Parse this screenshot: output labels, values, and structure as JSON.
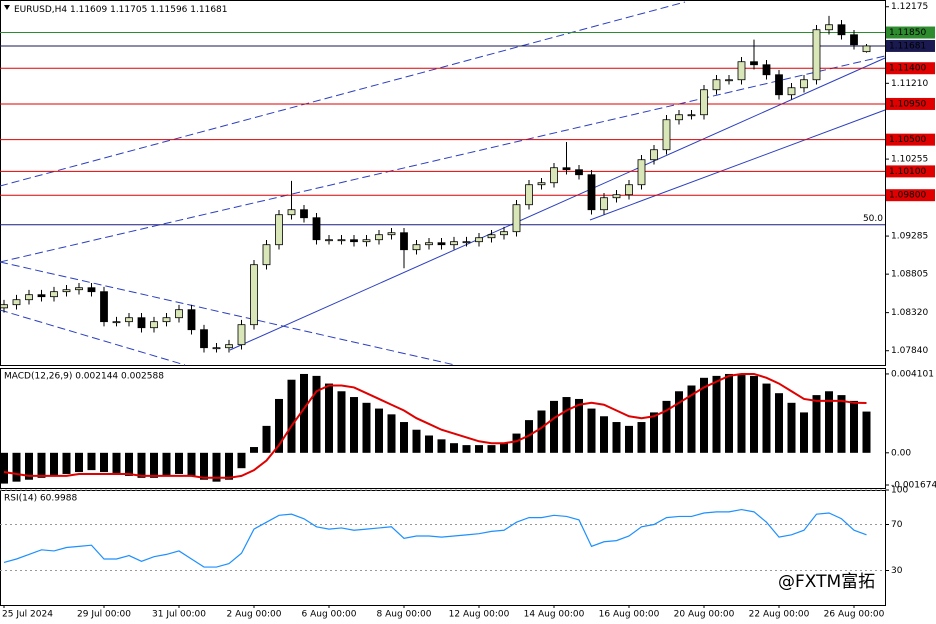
{
  "chart_data": [
    {
      "type": "candlestick",
      "title": "EURUSD,H4",
      "header_values": [
        "1.11609",
        "1.11705",
        "1.11596",
        "1.11681"
      ],
      "categories": [
        "25 Jul 2024",
        null,
        null,
        null,
        null,
        null,
        null,
        null,
        "29 Jul 00:00",
        null,
        null,
        null,
        null,
        null,
        "31 Jul 00:00",
        null,
        null,
        null,
        null,
        null,
        "2 Aug 00:00",
        null,
        null,
        null,
        null,
        null,
        "6 Aug 00:00",
        null,
        null,
        null,
        null,
        null,
        "8 Aug 00:00",
        null,
        null,
        null,
        null,
        null,
        "12 Aug 00:00",
        null,
        null,
        null,
        null,
        null,
        "14 Aug 00:00",
        null,
        null,
        null,
        null,
        null,
        "16 Aug 00:00",
        null,
        null,
        null,
        null,
        null,
        "20 Aug 00:00",
        null,
        null,
        null,
        null,
        null,
        "22 Aug 00:00",
        null,
        null,
        null,
        null,
        null,
        "26 Aug 00:00",
        null
      ],
      "open": [
        1.0838,
        1.0842,
        1.08483,
        1.08546,
        1.08521,
        1.08584,
        1.08609,
        1.08634,
        1.08584,
        1.08206,
        1.08206,
        1.08256,
        1.0813,
        1.08206,
        1.08256,
        1.08357,
        1.08105,
        1.07878,
        1.07878,
        1.07916,
        1.08168,
        1.08924,
        1.09176,
        1.09554,
        1.09617,
        1.09516,
        1.09239,
        1.09239,
        1.09239,
        1.09214,
        1.09239,
        1.09302,
        1.09327,
        1.09113,
        1.09176,
        1.09201,
        1.09176,
        1.09214,
        1.09214,
        1.09264,
        1.09302,
        1.0934,
        1.0968,
        1.09932,
        1.09957,
        1.10146,
        1.10121,
        1.10058,
        1.09617,
        1.09768,
        1.09806,
        1.09932,
        1.10247,
        1.10373,
        1.10751,
        1.10814,
        1.10814,
        1.11129,
        1.11255,
        1.11255,
        1.11482,
        1.11444,
        1.11318,
        1.11066,
        1.11154,
        1.11255,
        1.11885,
        1.11948,
        1.11822,
        1.11609
      ],
      "high": [
        1.0848,
        1.08543,
        1.08606,
        1.08606,
        1.08644,
        1.08669,
        1.08694,
        1.08694,
        1.08644,
        1.08266,
        1.08316,
        1.08316,
        1.08266,
        1.08316,
        1.08417,
        1.08417,
        1.08165,
        1.07938,
        1.07976,
        1.08228,
        1.08984,
        1.09236,
        1.09614,
        1.0998,
        1.09677,
        1.09576,
        1.09299,
        1.09299,
        1.09299,
        1.09299,
        1.09362,
        1.09387,
        1.09387,
        1.09236,
        1.09261,
        1.09261,
        1.09274,
        1.09274,
        1.09324,
        1.09362,
        1.094,
        1.0974,
        1.09992,
        1.10017,
        1.10206,
        1.1047,
        1.10181,
        1.10118,
        1.09828,
        1.09866,
        1.09992,
        1.10307,
        1.10433,
        1.10811,
        1.10874,
        1.10874,
        1.11189,
        1.11315,
        1.11315,
        1.11542,
        1.1176,
        1.11504,
        1.11378,
        1.11214,
        1.11315,
        1.11945,
        1.1206,
        1.12008,
        1.11882,
        1.11705
      ],
      "low": [
        1.0832,
        1.0836,
        1.08423,
        1.08461,
        1.08461,
        1.08524,
        1.08549,
        1.08524,
        1.08146,
        1.08146,
        1.08146,
        1.0807,
        1.0807,
        1.08146,
        1.08196,
        1.08045,
        1.07818,
        1.07818,
        1.07818,
        1.07856,
        1.08108,
        1.08864,
        1.09116,
        1.09494,
        1.09456,
        1.09179,
        1.09179,
        1.09179,
        1.09154,
        1.09154,
        1.09179,
        1.09242,
        1.0888,
        1.09053,
        1.09116,
        1.09116,
        1.09116,
        1.09154,
        1.09154,
        1.09204,
        1.09242,
        1.0928,
        1.0962,
        1.09872,
        1.09897,
        1.10061,
        1.09998,
        1.09557,
        1.09557,
        1.09708,
        1.09746,
        1.09872,
        1.10187,
        1.10313,
        1.10691,
        1.10754,
        1.10754,
        1.11069,
        1.11195,
        1.11195,
        1.11384,
        1.11258,
        1.11006,
        1.11006,
        1.11094,
        1.11195,
        1.11825,
        1.11762,
        1.11636,
        1.11596
      ],
      "close": [
        1.0842,
        1.08483,
        1.08546,
        1.08521,
        1.08584,
        1.08609,
        1.08634,
        1.08584,
        1.08206,
        1.08206,
        1.08256,
        1.0813,
        1.08206,
        1.08256,
        1.08357,
        1.08105,
        1.07878,
        1.07878,
        1.07916,
        1.08168,
        1.08924,
        1.09176,
        1.09554,
        1.09617,
        1.09516,
        1.09239,
        1.09239,
        1.09239,
        1.09214,
        1.09239,
        1.09302,
        1.09327,
        1.09113,
        1.09176,
        1.09201,
        1.09176,
        1.09214,
        1.09214,
        1.09264,
        1.09302,
        1.0934,
        1.0968,
        1.09932,
        1.09957,
        1.10146,
        1.10121,
        1.10058,
        1.09617,
        1.09768,
        1.09806,
        1.09932,
        1.10247,
        1.10373,
        1.10751,
        1.10814,
        1.10814,
        1.11129,
        1.11255,
        1.11255,
        1.11482,
        1.11444,
        1.11318,
        1.11066,
        1.11154,
        1.11255,
        1.11885,
        1.11948,
        1.11822,
        1.11696,
        1.11681
      ],
      "bull_color": "#d9e6b8",
      "bear_color": "#000000",
      "ylim": [
        1.0766,
        1.1226
      ],
      "yticks": [
        1.12175,
        {
          "value": 1.1121,
          "label": "1.11210"
        },
        1.10255,
        1.09285,
        {
          "value": 1.08805,
          "label": "1.08805"
        },
        {
          "value": 1.0832,
          "label": "1.08320"
        },
        {
          "value": 1.0784,
          "label": "1.07840"
        }
      ],
      "levels": [
        {
          "value": 1.1185,
          "label": "1.11850",
          "color": "#2e8b2e"
        },
        {
          "value": 1.11681,
          "label": "1.11681",
          "color": "#1a1a50"
        },
        {
          "value": 1.114,
          "label": "1.11400",
          "color": "#e00000"
        },
        {
          "value": 1.1095,
          "label": "1.10950",
          "color": "#e00000"
        },
        {
          "value": 1.105,
          "label": "1.10500",
          "color": "#e00000"
        },
        {
          "value": 1.101,
          "label": "1.10100",
          "color": "#e00000"
        },
        {
          "value": 1.098,
          "label": "1.09800",
          "color": "#e00000"
        }
      ],
      "fib_level": {
        "value": 1.09428,
        "label": "50.0",
        "color": "#1a1a80"
      }
    },
    {
      "type": "macd",
      "title": "MACD(12,26,9) 0.002144 0.002588",
      "series": [
        {
          "color": "#000000",
          "values": [
            -0.0016,
            -0.0015,
            -0.0014,
            -0.0013,
            -0.0012,
            -0.0011,
            -0.001,
            -0.0009,
            -0.001,
            -0.0011,
            -0.0012,
            -0.0013,
            -0.0013,
            -0.0012,
            -0.0011,
            -0.0012,
            -0.0014,
            -0.0015,
            -0.0014,
            -0.0008,
            0.0003,
            0.0014,
            0.0028,
            0.0038,
            0.0041,
            0.004,
            0.0036,
            0.0032,
            0.0029,
            0.0026,
            0.0023,
            0.002,
            0.0016,
            0.0012,
            0.0009,
            0.0007,
            0.0005,
            0.0004,
            0.0004,
            0.0004,
            0.0005,
            0.001,
            0.0017,
            0.0022,
            0.0027,
            0.0029,
            0.0028,
            0.0023,
            0.0019,
            0.0016,
            0.0014,
            0.0016,
            0.0021,
            0.0027,
            0.0032,
            0.0035,
            0.0039,
            0.004,
            0.0041,
            0.0041,
            0.004,
            0.0036,
            0.0031,
            0.0026,
            0.0021,
            0.003,
            0.0032,
            0.003,
            0.0027,
            0.002144
          ]
        },
        {
          "color": "#e00000",
          "values": [
            -0.001,
            -0.0011,
            -0.0012,
            -0.0012,
            -0.0012,
            -0.0012,
            -0.0011,
            -0.0011,
            -0.0011,
            -0.0011,
            -0.0011,
            -0.0012,
            -0.0012,
            -0.0012,
            -0.0012,
            -0.0012,
            -0.0013,
            -0.0013,
            -0.0013,
            -0.0012,
            -0.0009,
            -0.0004,
            0.0004,
            0.0014,
            0.0023,
            0.0032,
            0.0035,
            0.0035,
            0.0034,
            0.0031,
            0.0028,
            0.0025,
            0.0022,
            0.0018,
            0.0015,
            0.0012,
            0.001,
            0.0008,
            0.0006,
            0.0005,
            0.0005,
            0.0006,
            0.0009,
            0.0013,
            0.0018,
            0.0022,
            0.0025,
            0.0026,
            0.0025,
            0.0022,
            0.0019,
            0.0018,
            0.0019,
            0.0022,
            0.0026,
            0.003,
            0.0034,
            0.0037,
            0.004,
            0.0041,
            0.0041,
            0.0039,
            0.0036,
            0.0032,
            0.0028,
            0.0027,
            0.0027,
            0.0027,
            0.0026,
            0.002588
          ]
        }
      ],
      "ylim": [
        -0.00183,
        0.00441
      ],
      "yticks": [
        0.004101,
        {
          "value": 0,
          "label": "0.00"
        },
        -0.001674
      ]
    },
    {
      "type": "rsi",
      "title": "RSI(14) 60.9988",
      "color": "#1e90ff",
      "values": [
        37,
        40,
        44,
        48,
        47,
        50,
        51,
        52,
        40,
        40,
        43,
        38,
        42,
        44,
        47,
        40,
        33,
        33,
        36,
        45,
        66,
        72,
        78,
        79,
        75,
        68,
        66,
        67,
        65,
        66,
        67,
        68,
        58,
        60,
        60,
        59,
        60,
        61,
        62,
        64,
        65,
        72,
        76,
        76,
        78,
        77,
        74,
        51,
        55,
        56,
        60,
        68,
        70,
        76,
        77,
        77,
        80,
        81,
        81,
        83,
        81,
        72,
        59,
        61,
        65,
        79,
        80,
        75,
        65,
        60.9988
      ],
      "ylim": [
        0,
        100
      ],
      "yticks": [
        100,
        70,
        30
      ],
      "grid": true
    }
  ],
  "watermark": "@FXTM富拓"
}
